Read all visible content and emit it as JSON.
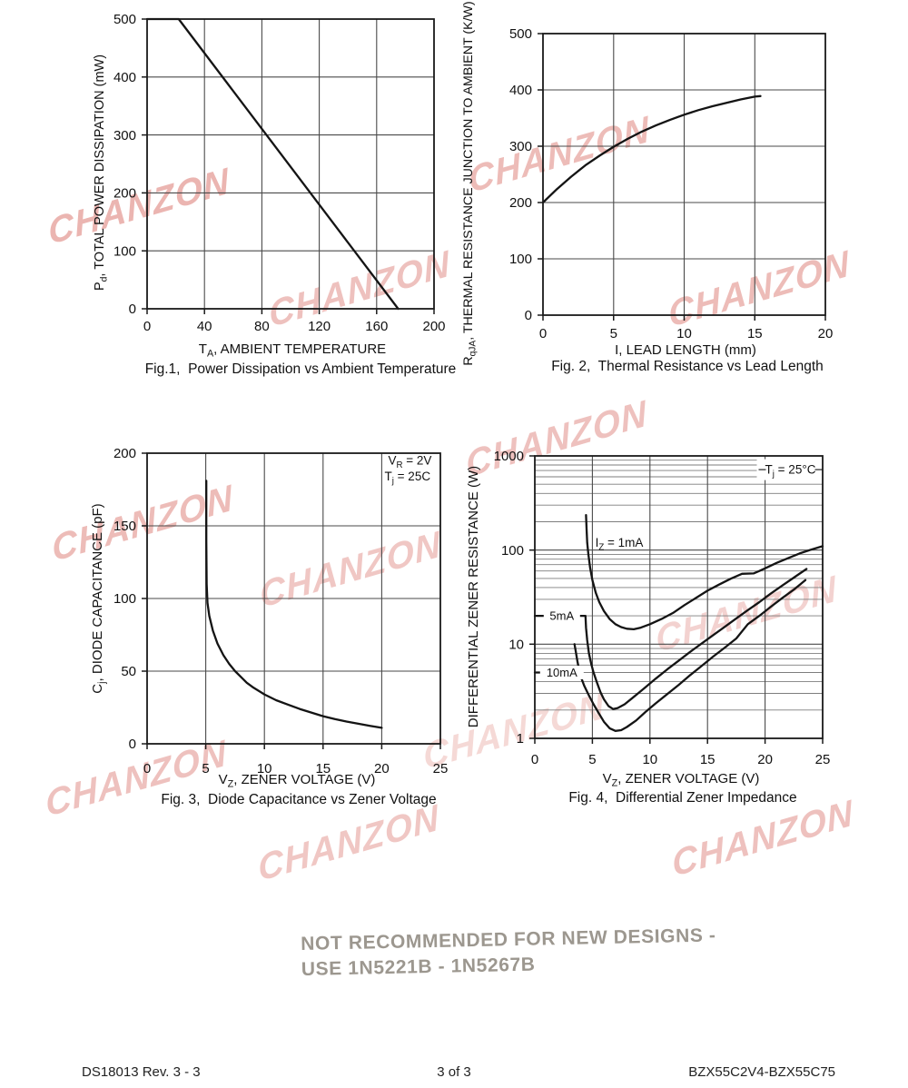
{
  "page": {
    "watermark_text": "CHANZON",
    "notice_line1": "NOT RECOMMENDED FOR NEW DESIGNS -",
    "notice_line2": "USE 1N5221B - 1N5267B",
    "footer_left": "DS18013 Rev. 3 - 3",
    "footer_center": "3 of 3",
    "footer_right": "BZX55C2V4-BZX55C75",
    "colors": {
      "curve": "#141414",
      "grid": "#4a4a4a",
      "minor_grid": "#7e7e7e",
      "watermark": "#d96e66",
      "notice_gray": "#9c978f"
    }
  },
  "chart_data": [
    {
      "id": "fig1",
      "type": "line",
      "title": "Fig.1,  Power Dissipation vs Ambient Temperature",
      "xlabel": "T_{A}, AMBIENT TEMPERATURE",
      "ylabel": "P_{d}, TOTAL POWER DISSIPATION (mW)",
      "xlim": [
        0,
        200
      ],
      "ylim": [
        0,
        500
      ],
      "x_ticks": [
        0,
        40,
        80,
        120,
        160,
        200
      ],
      "y_ticks": [
        0,
        100,
        200,
        300,
        400,
        500
      ],
      "y_scale": "linear",
      "grid": true,
      "series": [
        {
          "name": "power-derating",
          "points": [
            [
              0,
              500
            ],
            [
              22,
              500
            ],
            [
              175,
              0
            ]
          ]
        }
      ],
      "annotations": []
    },
    {
      "id": "fig2",
      "type": "line",
      "title": "Fig. 2,  Thermal Resistance vs Lead Length",
      "xlabel": "I, LEAD LENGTH (mm)",
      "ylabel": "R_{qJA}, THERMAL RESISTANCE JUNCTION TO AMBIENT (K/W)",
      "xlim": [
        0,
        20
      ],
      "ylim": [
        0,
        500
      ],
      "x_ticks": [
        0,
        5,
        10,
        15,
        20
      ],
      "y_ticks": [
        0,
        100,
        200,
        300,
        400,
        500
      ],
      "y_scale": "linear",
      "grid": true,
      "series": [
        {
          "name": "thermal-resistance",
          "points": [
            [
              0,
              200
            ],
            [
              1,
              224
            ],
            [
              2,
              246
            ],
            [
              3,
              266
            ],
            [
              4,
              283
            ],
            [
              5,
              299
            ],
            [
              6,
              313
            ],
            [
              7,
              326
            ],
            [
              8,
              337
            ],
            [
              9,
              347
            ],
            [
              10,
              356
            ],
            [
              11,
              364
            ],
            [
              12,
              371
            ],
            [
              13,
              377
            ],
            [
              14,
              383
            ],
            [
              15,
              388
            ],
            [
              15.4,
              389
            ]
          ]
        }
      ],
      "annotations": []
    },
    {
      "id": "fig3",
      "type": "line",
      "title": "Fig. 3,  Diode Capacitance vs Zener Voltage",
      "xlabel": "V_{Z}, ZENER VOLTAGE (V)",
      "ylabel": "C_{j}, DIODE CAPACITANCE (pF)",
      "xlim": [
        0,
        25
      ],
      "ylim": [
        0,
        200
      ],
      "x_ticks": [
        0,
        5,
        10,
        15,
        20,
        25
      ],
      "y_ticks": [
        0,
        50,
        100,
        150,
        200
      ],
      "y_scale": "linear",
      "grid": true,
      "series": [
        {
          "name": "diode-capacitance",
          "points": [
            [
              5.05,
              181
            ],
            [
              5.05,
              140
            ],
            [
              5.08,
              110
            ],
            [
              5.15,
              97
            ],
            [
              5.3,
              88
            ],
            [
              5.6,
              78
            ],
            [
              6,
              69
            ],
            [
              6.5,
              61
            ],
            [
              7,
              55
            ],
            [
              7.5,
              50
            ],
            [
              8,
              46
            ],
            [
              8.5,
              42
            ],
            [
              9,
              39
            ],
            [
              10,
              34
            ],
            [
              11,
              30
            ],
            [
              12,
              27
            ],
            [
              13,
              24
            ],
            [
              14,
              21.5
            ],
            [
              15,
              19
            ],
            [
              16,
              17
            ],
            [
              17,
              15.3
            ],
            [
              18,
              13.8
            ],
            [
              19,
              12.3
            ],
            [
              20,
              11
            ]
          ]
        }
      ],
      "annotations": [
        {
          "text": "V_{R} = 2V",
          "x": 22.4,
          "y": 195,
          "anchor": "middle",
          "fs": 13.5
        },
        {
          "text": "T_{j} = 25C",
          "x": 22.2,
          "y": 184,
          "anchor": "middle",
          "fs": 13.5
        }
      ]
    },
    {
      "id": "fig4",
      "type": "line",
      "title": "Fig. 4,  Differential Zener Impedance",
      "xlabel": "V_{Z}, ZENER VOLTAGE (V)",
      "ylabel": "DIFFERENTIAL ZENER RESISTANCE (W)",
      "xlim": [
        0,
        25
      ],
      "ylim": [
        1,
        1000
      ],
      "x_ticks": [
        0,
        5,
        10,
        15,
        20,
        25
      ],
      "y_ticks": [
        1,
        10,
        100,
        1000
      ],
      "y_scale": "log",
      "grid": true,
      "series": [
        {
          "name": "Iz-1mA",
          "points": [
            [
              4.45,
              235
            ],
            [
              4.5,
              160
            ],
            [
              4.55,
              120
            ],
            [
              4.65,
              90
            ],
            [
              4.8,
              65
            ],
            [
              5,
              48
            ],
            [
              5.3,
              35
            ],
            [
              5.6,
              28
            ],
            [
              6,
              22.5
            ],
            [
              6.5,
              18.5
            ],
            [
              7,
              16.3
            ],
            [
              7.5,
              15.2
            ],
            [
              8,
              14.6
            ],
            [
              8.6,
              14.4
            ],
            [
              9.2,
              15
            ],
            [
              10,
              16.3
            ],
            [
              11,
              18.5
            ],
            [
              12,
              21.5
            ],
            [
              13,
              26
            ],
            [
              14,
              31
            ],
            [
              15,
              37
            ],
            [
              16,
              43
            ],
            [
              17,
              49.5
            ],
            [
              18,
              56
            ],
            [
              19,
              56.5
            ],
            [
              19.5,
              60
            ],
            [
              20,
              64
            ],
            [
              21,
              73
            ],
            [
              22,
              82
            ],
            [
              23,
              92
            ],
            [
              24,
              101
            ],
            [
              25,
              110
            ]
          ]
        },
        {
          "name": "Iz-5mA",
          "points": [
            [
              0,
              20
            ],
            [
              4.4,
              20
            ],
            [
              4.45,
              15
            ],
            [
              4.55,
              11
            ],
            [
              4.7,
              8
            ],
            [
              4.9,
              6.2
            ],
            [
              5.1,
              5
            ],
            [
              5.4,
              3.9
            ],
            [
              5.7,
              3.1
            ],
            [
              6,
              2.6
            ],
            [
              6.4,
              2.2
            ],
            [
              6.8,
              2.05
            ],
            [
              7.2,
              2.1
            ],
            [
              7.8,
              2.3
            ],
            [
              8.5,
              2.7
            ],
            [
              9.5,
              3.4
            ],
            [
              10.5,
              4.3
            ],
            [
              11.5,
              5.4
            ],
            [
              12.5,
              6.7
            ],
            [
              13.5,
              8.3
            ],
            [
              14.5,
              10.2
            ],
            [
              15.5,
              12.5
            ],
            [
              16.5,
              15.3
            ],
            [
              17.5,
              18.8
            ],
            [
              18.5,
              23
            ],
            [
              19.5,
              28
            ],
            [
              20.5,
              34.5
            ],
            [
              21.5,
              42
            ],
            [
              22.5,
              51
            ],
            [
              23.6,
              63
            ]
          ]
        },
        {
          "name": "Iz-10mA",
          "points": [
            [
              3.45,
              10
            ],
            [
              3.55,
              8.5
            ],
            [
              3.7,
              6.6
            ],
            [
              3.85,
              5.3
            ],
            [
              4.0,
              4.5
            ],
            [
              4.3,
              3.6
            ],
            [
              4.7,
              2.85
            ],
            [
              5.1,
              2.3
            ],
            [
              5.5,
              1.9
            ],
            [
              6,
              1.5
            ],
            [
              6.5,
              1.28
            ],
            [
              7,
              1.2
            ],
            [
              7.5,
              1.22
            ],
            [
              8,
              1.32
            ],
            [
              8.8,
              1.55
            ],
            [
              9.6,
              1.9
            ],
            [
              10.5,
              2.35
            ],
            [
              11.5,
              2.95
            ],
            [
              12.5,
              3.7
            ],
            [
              13.5,
              4.7
            ],
            [
              14.5,
              5.9
            ],
            [
              15.5,
              7.4
            ],
            [
              16.5,
              9.2
            ],
            [
              17.5,
              11.5
            ],
            [
              18.5,
              16.3
            ],
            [
              19.5,
              20
            ],
            [
              20.5,
              25
            ],
            [
              21.5,
              31
            ],
            [
              22.5,
              38
            ],
            [
              23.5,
              48
            ]
          ]
        },
        {
          "name": "Iz-10mA-leader",
          "points": [
            [
              0,
              5
            ],
            [
              3.9,
              5
            ]
          ]
        }
      ],
      "annotations": [
        {
          "text": "I_{Z} = 1mA",
          "x": 5.25,
          "y": 120,
          "anchor": "start",
          "fs": 13.5
        },
        {
          "text": "5mA",
          "x": 2.35,
          "y": 20,
          "anchor": "middle",
          "fs": 13,
          "bg": [
            40,
            15
          ]
        },
        {
          "text": "10mA",
          "x": 2.35,
          "y": 5,
          "anchor": "middle",
          "fs": 13,
          "bg": [
            48,
            15
          ]
        },
        {
          "text": "T_{j} = 25°C",
          "x": 22.2,
          "y": 715,
          "anchor": "middle",
          "fs": 13.5,
          "bg": [
            74,
            23
          ],
          "dashes": true
        }
      ]
    }
  ]
}
